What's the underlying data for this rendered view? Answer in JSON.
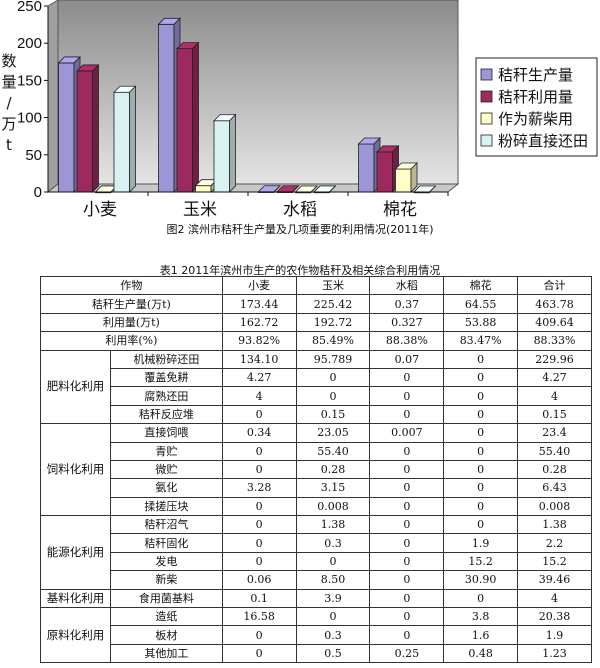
{
  "chart_data": {
    "type": "bar",
    "categories": [
      "小麦",
      "玉米",
      "水稻",
      "棉花"
    ],
    "series": [
      {
        "name": "秸秆生产量",
        "color": "#9c96d6",
        "values": [
          173.44,
          225.42,
          0.37,
          64.55
        ]
      },
      {
        "name": "秸秆利用量",
        "color": "#9c2a5e",
        "values": [
          162.72,
          192.72,
          0.327,
          53.88
        ]
      },
      {
        "name": "作为薪柴用",
        "color": "#ffffc8",
        "values": [
          0.06,
          8.5,
          0,
          30.9
        ]
      },
      {
        "name": "粉碎直接还田",
        "color": "#d8f2f2",
        "values": [
          134.1,
          95.789,
          0.07,
          0
        ]
      }
    ],
    "ylabel": "数量/万t",
    "ylim": [
      0,
      250
    ],
    "yticks": [
      0,
      50,
      100,
      150,
      200,
      250
    ],
    "grid": false,
    "legend": "right",
    "title": "图2 滨州市秸秆生产量及几项重要的利用情况(2011年)"
  },
  "table": {
    "title": "表1 2011年滨州市生产的农作物秸秆及相关综合利用情况",
    "header": [
      "作物",
      "小麦",
      "玉米",
      "水稻",
      "棉花",
      "合计"
    ],
    "summary_rows": [
      [
        "秸秆生产量(万t)",
        "173.44",
        "225.42",
        "0.37",
        "64.55",
        "463.78"
      ],
      [
        "利用量(万t)",
        "162.72",
        "192.72",
        "0.327",
        "53.88",
        "409.64"
      ],
      [
        "利用率(%)",
        "93.82%",
        "85.49%",
        "88.38%",
        "83.47%",
        "88.33%"
      ]
    ],
    "groups": [
      {
        "name": "肥料化利用",
        "rows": [
          [
            "机械粉碎还田",
            "134.10",
            "95.789",
            "0.07",
            "0",
            "229.96"
          ],
          [
            "覆盖免耕",
            "4.27",
            "0",
            "0",
            "0",
            "4.27"
          ],
          [
            "腐熟还田",
            "4",
            "0",
            "0",
            "0",
            "4"
          ],
          [
            "秸秆反应堆",
            "0",
            "0.15",
            "0",
            "0",
            "0.15"
          ]
        ]
      },
      {
        "name": "饲料化利用",
        "rows": [
          [
            "直接饲喂",
            "0.34",
            "23.05",
            "0.007",
            "0",
            "23.4"
          ],
          [
            "青贮",
            "0",
            "55.40",
            "0",
            "0",
            "55.40"
          ],
          [
            "微贮",
            "0",
            "0.28",
            "0",
            "0",
            "0.28"
          ],
          [
            "氨化",
            "3.28",
            "3.15",
            "0",
            "0",
            "6.43"
          ],
          [
            "揉搓压块",
            "0",
            "0.008",
            "0",
            "0",
            "0.008"
          ]
        ]
      },
      {
        "name": "能源化利用",
        "rows": [
          [
            "秸秆沼气",
            "0",
            "1.38",
            "0",
            "0",
            "1.38"
          ],
          [
            "秸秆固化",
            "0",
            "0.3",
            "0",
            "1.9",
            "2.2"
          ],
          [
            "发电",
            "0",
            "0",
            "0",
            "15.2",
            "15.2"
          ],
          [
            "新柴",
            "0.06",
            "8.50",
            "0",
            "30.90",
            "39.46"
          ]
        ]
      },
      {
        "name": "基料化利用",
        "rows": [
          [
            "食用菌基料",
            "0.1",
            "3.9",
            "0",
            "0",
            "4"
          ]
        ]
      },
      {
        "name": "原料化利用",
        "rows": [
          [
            "造纸",
            "16.58",
            "0",
            "0",
            "3.8",
            "20.38"
          ],
          [
            "板材",
            "0",
            "0.3",
            "0",
            "1.6",
            "1.9"
          ],
          [
            "其他加工",
            "0",
            "0.5",
            "0.25",
            "0.48",
            "1.23"
          ]
        ]
      }
    ]
  }
}
